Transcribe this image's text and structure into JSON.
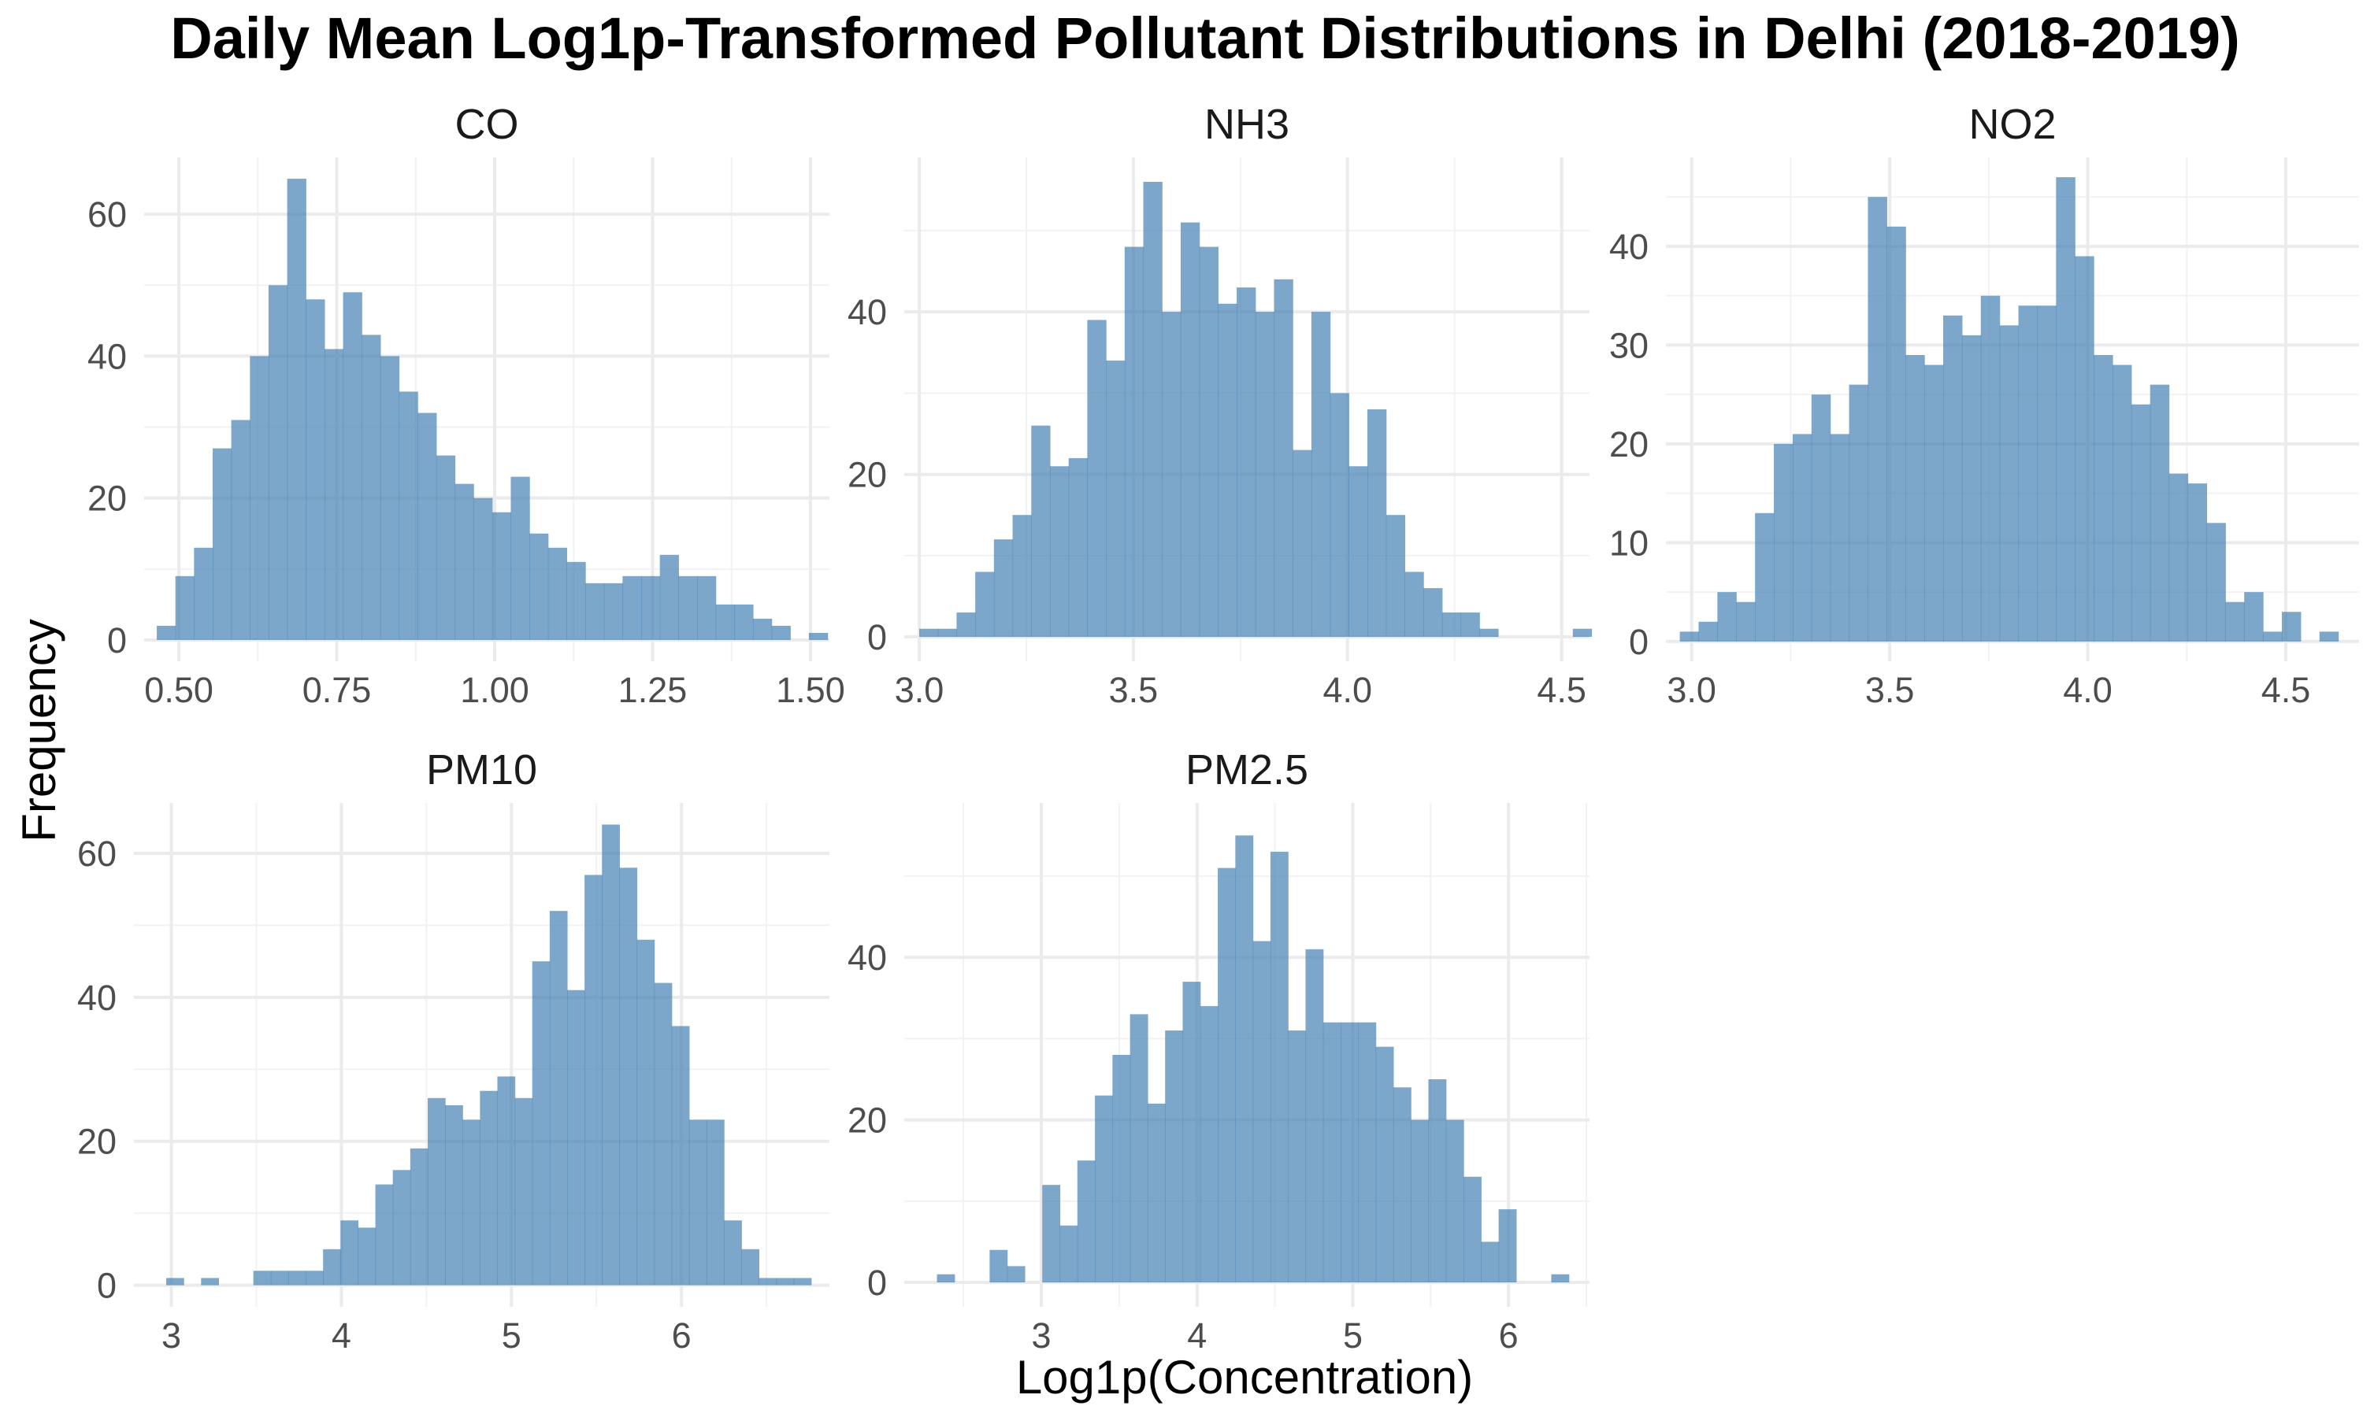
{
  "chart_data": {
    "type": "histogram-facets",
    "title": "Daily Mean Log1p-Transformed Pollutant Distributions in Delhi (2018-2019)",
    "xlabel": "Log1p(Concentration)",
    "ylabel": "Frequency",
    "bar_color": "#4682B4",
    "grid": true,
    "panels": [
      {
        "name": "CO",
        "bin_start": 0.465,
        "bin_width": 0.0295,
        "counts": [
          2,
          9,
          13,
          27,
          31,
          40,
          50,
          65,
          48,
          41,
          49,
          43,
          40,
          35,
          32,
          26,
          22,
          20,
          18,
          23,
          15,
          13,
          11,
          8,
          8,
          9,
          9,
          12,
          9,
          9,
          5,
          5,
          3,
          2,
          0,
          1
        ],
        "xlim": [
          0.445,
          1.53
        ],
        "ylim": [
          -3,
          68
        ],
        "xticks": [
          0.5,
          0.75,
          1.0,
          1.25,
          1.5
        ],
        "xtick_labels": [
          "0.50",
          "0.75",
          "1.00",
          "1.25",
          "1.50"
        ],
        "yticks": [
          0,
          20,
          40,
          60
        ],
        "ytick_labels": [
          "0",
          "20",
          "40",
          "60"
        ]
      },
      {
        "name": "NH3",
        "bin_start": 3.0,
        "bin_width": 0.0436,
        "counts": [
          1,
          1,
          3,
          8,
          12,
          15,
          26,
          21,
          22,
          39,
          34,
          48,
          56,
          40,
          51,
          48,
          41,
          43,
          40,
          44,
          23,
          40,
          30,
          21,
          28,
          15,
          8,
          6,
          3,
          3,
          1,
          0,
          0,
          0,
          0,
          1
        ],
        "xlim": [
          2.965,
          4.565
        ],
        "ylim": [
          -3,
          59
        ],
        "xticks": [
          3.0,
          3.5,
          4.0,
          4.5
        ],
        "xtick_labels": [
          "3.0",
          "3.5",
          "4.0",
          "4.5"
        ],
        "yticks": [
          0,
          20,
          40
        ],
        "ytick_labels": [
          "0",
          "20",
          "40"
        ]
      },
      {
        "name": "NO2",
        "bin_start": 2.97,
        "bin_width": 0.0475,
        "counts": [
          1,
          2,
          5,
          4,
          13,
          20,
          21,
          25,
          21,
          26,
          45,
          42,
          29,
          28,
          33,
          31,
          35,
          32,
          34,
          34,
          47,
          39,
          29,
          28,
          24,
          26,
          17,
          16,
          12,
          4,
          5,
          1,
          3,
          0,
          1
        ],
        "xlim": [
          2.935,
          4.685
        ],
        "ylim": [
          -2,
          49
        ],
        "xticks": [
          3.0,
          3.5,
          4.0,
          4.5
        ],
        "xtick_labels": [
          "3.0",
          "3.5",
          "4.0",
          "4.5"
        ],
        "yticks": [
          0,
          10,
          20,
          30,
          40
        ],
        "ytick_labels": [
          "0",
          "10",
          "20",
          "30",
          "40"
        ]
      },
      {
        "name": "PM10",
        "bin_start": 2.97,
        "bin_width": 0.1025,
        "counts": [
          1,
          0,
          1,
          0,
          0,
          2,
          2,
          2,
          2,
          5,
          9,
          8,
          14,
          16,
          19,
          26,
          25,
          23,
          27,
          29,
          26,
          45,
          52,
          41,
          57,
          64,
          58,
          48,
          42,
          36,
          23,
          23,
          9,
          5,
          1,
          1,
          1
        ],
        "xlim": [
          2.78,
          6.87
        ],
        "ylim": [
          -3,
          67
        ],
        "xticks": [
          3,
          4,
          5,
          6
        ],
        "xtick_labels": [
          "3",
          "4",
          "5",
          "6"
        ],
        "yticks": [
          0,
          20,
          40,
          60
        ],
        "ytick_labels": [
          "0",
          "20",
          "40",
          "60"
        ]
      },
      {
        "name": "PM2.5",
        "bin_start": 2.33,
        "bin_width": 0.1127,
        "counts": [
          1,
          0,
          0,
          4,
          2,
          0,
          12,
          7,
          15,
          23,
          28,
          33,
          22,
          31,
          37,
          34,
          51,
          55,
          42,
          53,
          31,
          41,
          32,
          32,
          32,
          29,
          24,
          20,
          25,
          20,
          13,
          5,
          9,
          0,
          0,
          1
        ],
        "xlim": [
          2.12,
          6.52
        ],
        "ylim": [
          -3,
          59
        ],
        "xticks": [
          3,
          4,
          5,
          6
        ],
        "xtick_labels": [
          "3",
          "4",
          "5",
          "6"
        ],
        "yticks": [
          0,
          20,
          40
        ],
        "ytick_labels": [
          "0",
          "20",
          "40"
        ]
      }
    ]
  }
}
